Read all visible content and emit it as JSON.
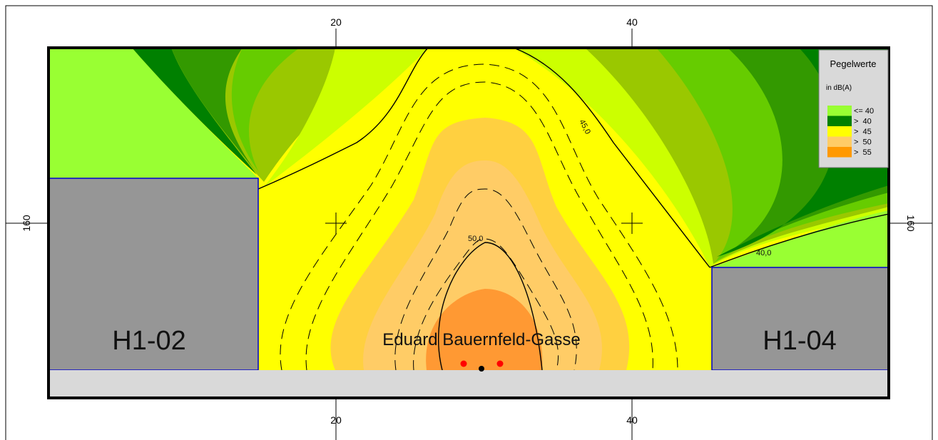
{
  "colors": {
    "le40": "#99ff33",
    "gt40": "#008000",
    "gt45": "#ffff00",
    "gt50": "#ffcc66",
    "gt55": "#ff9900",
    "building": "#969696",
    "street_strip": "#d9d9d9",
    "building_outline": "#0000cc",
    "source_point": "#ff0000"
  },
  "axes": {
    "top_ticks": [
      "20",
      "40"
    ],
    "bottom_ticks": [
      "20",
      "40"
    ],
    "left_tick": "160",
    "right_tick": "160"
  },
  "buildings": {
    "left": {
      "label": "H1-02"
    },
    "right": {
      "label": "H1-04"
    }
  },
  "street": {
    "label": "Eduard Bauernfeld-Gasse"
  },
  "contour_labels": {
    "c45": "45,0",
    "c50": "50,0",
    "c40": "40,0"
  },
  "legend": {
    "title": "Pegelwerte",
    "subtitle": "in dB(A)",
    "items": [
      {
        "label": "<= 40",
        "color": "#99ff33"
      },
      {
        "label": ">  40",
        "color": "#008000"
      },
      {
        "label": ">  45",
        "color": "#ffff00"
      },
      {
        "label": ">  50",
        "color": "#ffcc66"
      },
      {
        "label": ">  55",
        "color": "#ff9900"
      }
    ]
  }
}
